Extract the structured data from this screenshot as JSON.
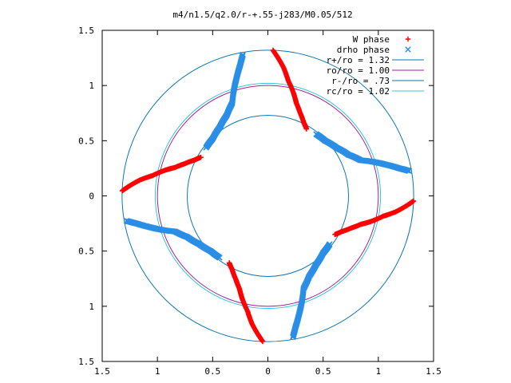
{
  "chart_data": {
    "type": "scatter",
    "title": "m4/n1.5/q2.0/r-+.55-j283/M0.05/512",
    "xlabel": "",
    "ylabel": "",
    "xlim": [
      -1.5,
      1.5
    ],
    "ylim": [
      -1.5,
      1.5
    ],
    "x_ticks": [
      -1.5,
      -1,
      -0.5,
      0,
      0.5,
      1,
      1.5
    ],
    "y_ticks": [
      -1.5,
      -1,
      -0.5,
      0,
      0.5,
      1,
      1.5
    ],
    "x_tick_labels": [
      "1.5",
      "1",
      "0.5",
      "0",
      "0.5",
      "1",
      "1.5"
    ],
    "y_tick_labels": [
      "1.5",
      "1",
      "0.5",
      "0",
      "0.5",
      "1",
      "1.5"
    ],
    "grid": false,
    "legend_position": "top-right",
    "circles": [
      {
        "name": "r+/ro = 1.32",
        "radius": 1.32,
        "color": "#0f76b3"
      },
      {
        "name": "ro/ro = 1.00",
        "radius": 1.0,
        "color": "#a020a0"
      },
      {
        "name": "r-/ro = .73",
        "radius": 0.73,
        "color": "#0f76b3"
      },
      {
        "name": "rc/ro = 1.02",
        "radius": 1.02,
        "color": "#30c8d8"
      }
    ],
    "spiral_series": [
      {
        "name": "W phase",
        "marker": "+",
        "color": "#ff0000",
        "rotation_offset_deg": 0,
        "points": [
          {
            "r": 1.32,
            "theta_deg": -2
          },
          {
            "r": 1.26,
            "theta_deg": -4
          },
          {
            "r": 1.17,
            "theta_deg": -7
          },
          {
            "r": 1.06,
            "theta_deg": -10
          },
          {
            "r": 0.96,
            "theta_deg": -14
          },
          {
            "r": 0.88,
            "theta_deg": -17
          },
          {
            "r": 0.81,
            "theta_deg": -21
          },
          {
            "r": 0.74,
            "theta_deg": -26
          },
          {
            "r": 0.7,
            "theta_deg": -30
          }
        ]
      },
      {
        "name": "drho phase",
        "marker": "x",
        "color": "#2a8ee6",
        "rotation_offset_deg": 0,
        "points": [
          {
            "r": 0.71,
            "theta_deg": -38
          },
          {
            "r": 0.72,
            "theta_deg": -46
          },
          {
            "r": 0.76,
            "theta_deg": -55
          },
          {
            "r": 0.82,
            "theta_deg": -63
          },
          {
            "r": 0.9,
            "theta_deg": -69
          },
          {
            "r": 1.0,
            "theta_deg": -72
          },
          {
            "r": 1.1,
            "theta_deg": -75
          },
          {
            "r": 1.21,
            "theta_deg": -78
          },
          {
            "r": 1.3,
            "theta_deg": -80
          }
        ]
      }
    ],
    "symmetry_fold": 4
  }
}
